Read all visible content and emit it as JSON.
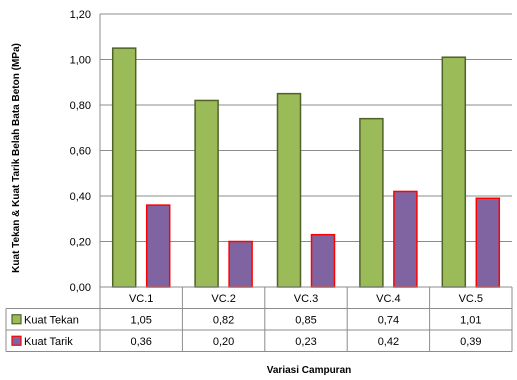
{
  "chart_data": {
    "type": "bar",
    "categories": [
      "VC.1",
      "VC.2",
      "VC.3",
      "VC.4",
      "VC.5"
    ],
    "series": [
      {
        "name": "Kuat Tekan",
        "values": [
          1.05,
          0.82,
          0.85,
          0.74,
          1.01
        ],
        "labels": [
          "1,05",
          "0,82",
          "0,85",
          "0,74",
          "1,01"
        ],
        "color": "#9BBB59",
        "border": "#4F6228"
      },
      {
        "name": "Kuat Tarik",
        "values": [
          0.36,
          0.2,
          0.23,
          0.42,
          0.39
        ],
        "labels": [
          "0,36",
          "0,20",
          "0,23",
          "0,42",
          "0,39"
        ],
        "color": "#8064A2",
        "border": "#FF0000"
      }
    ],
    "y_ticks": [
      "0,00",
      "0,20",
      "0,40",
      "0,60",
      "0,80",
      "1,00",
      "1,20"
    ],
    "ylim": [
      0,
      1.2
    ],
    "xlabel": "Variasi Campuran",
    "ylabel": "Kuat Tekan & Kuat Tarik Belah Bata Beton (MPa)",
    "grid": true,
    "legend": "data-table"
  }
}
